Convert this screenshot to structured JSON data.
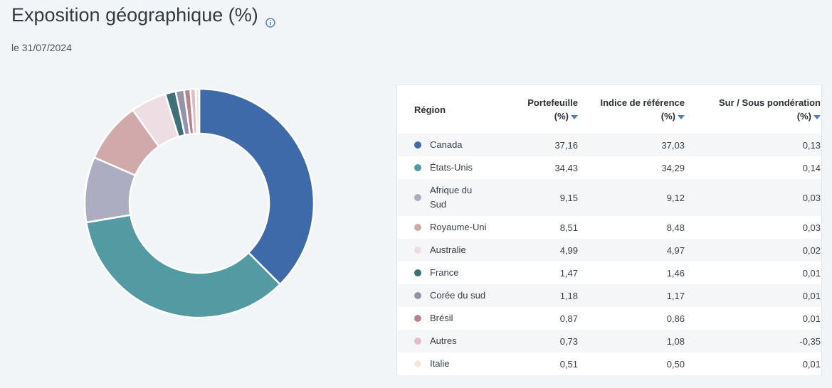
{
  "header": {
    "title": "Exposition géographique (%)",
    "date": "le 31/07/2024"
  },
  "table": {
    "headers": {
      "region": "Région",
      "portfolio_l1": "Portefeuille",
      "portfolio_l2": "(%)",
      "benchmark_l1": "Indice de référence",
      "benchmark_l2": "(%)",
      "overweight_l1": "Sur / Sous pondération",
      "overweight_l2": "(%)"
    },
    "rows": [
      {
        "region": "Canada",
        "portfolio": "37,16",
        "benchmark": "37,03",
        "overweight": "0,13"
      },
      {
        "region": "États-Unis",
        "portfolio": "34,43",
        "benchmark": "34,29",
        "overweight": "0,14"
      },
      {
        "region": "Afrique du Sud",
        "portfolio": "9,15",
        "benchmark": "9,12",
        "overweight": "0,03"
      },
      {
        "region": "Royaume-Uni",
        "portfolio": "8,51",
        "benchmark": "8,48",
        "overweight": "0,03"
      },
      {
        "region": "Australie",
        "portfolio": "4,99",
        "benchmark": "4,97",
        "overweight": "0,02"
      },
      {
        "region": "France",
        "portfolio": "1,47",
        "benchmark": "1,46",
        "overweight": "0,01"
      },
      {
        "region": "Corée du sud",
        "portfolio": "1,18",
        "benchmark": "1,17",
        "overweight": "0,01"
      },
      {
        "region": "Brésil",
        "portfolio": "0,87",
        "benchmark": "0,86",
        "overweight": "0,01"
      },
      {
        "region": "Autres",
        "portfolio": "0,73",
        "benchmark": "1,08",
        "overweight": "-0,35"
      },
      {
        "region": "Italie",
        "portfolio": "0,51",
        "benchmark": "0,50",
        "overweight": "0,01"
      }
    ]
  },
  "colors": [
    "#3f6aaa",
    "#549aa3",
    "#adadc2",
    "#d2a9aa",
    "#eedde2",
    "#3d7079",
    "#9393ab",
    "#b8848a",
    "#e2bcc6",
    "#f1e8d6"
  ],
  "chart_data": {
    "type": "pie",
    "categories": [
      "Canada",
      "États-Unis",
      "Afrique du Sud",
      "Royaume-Uni",
      "Australie",
      "France",
      "Corée du sud",
      "Brésil",
      "Autres",
      "Italie"
    ],
    "values": [
      37.16,
      34.43,
      9.15,
      8.51,
      4.99,
      1.47,
      1.18,
      0.87,
      0.73,
      0.51
    ],
    "donut": true
  }
}
